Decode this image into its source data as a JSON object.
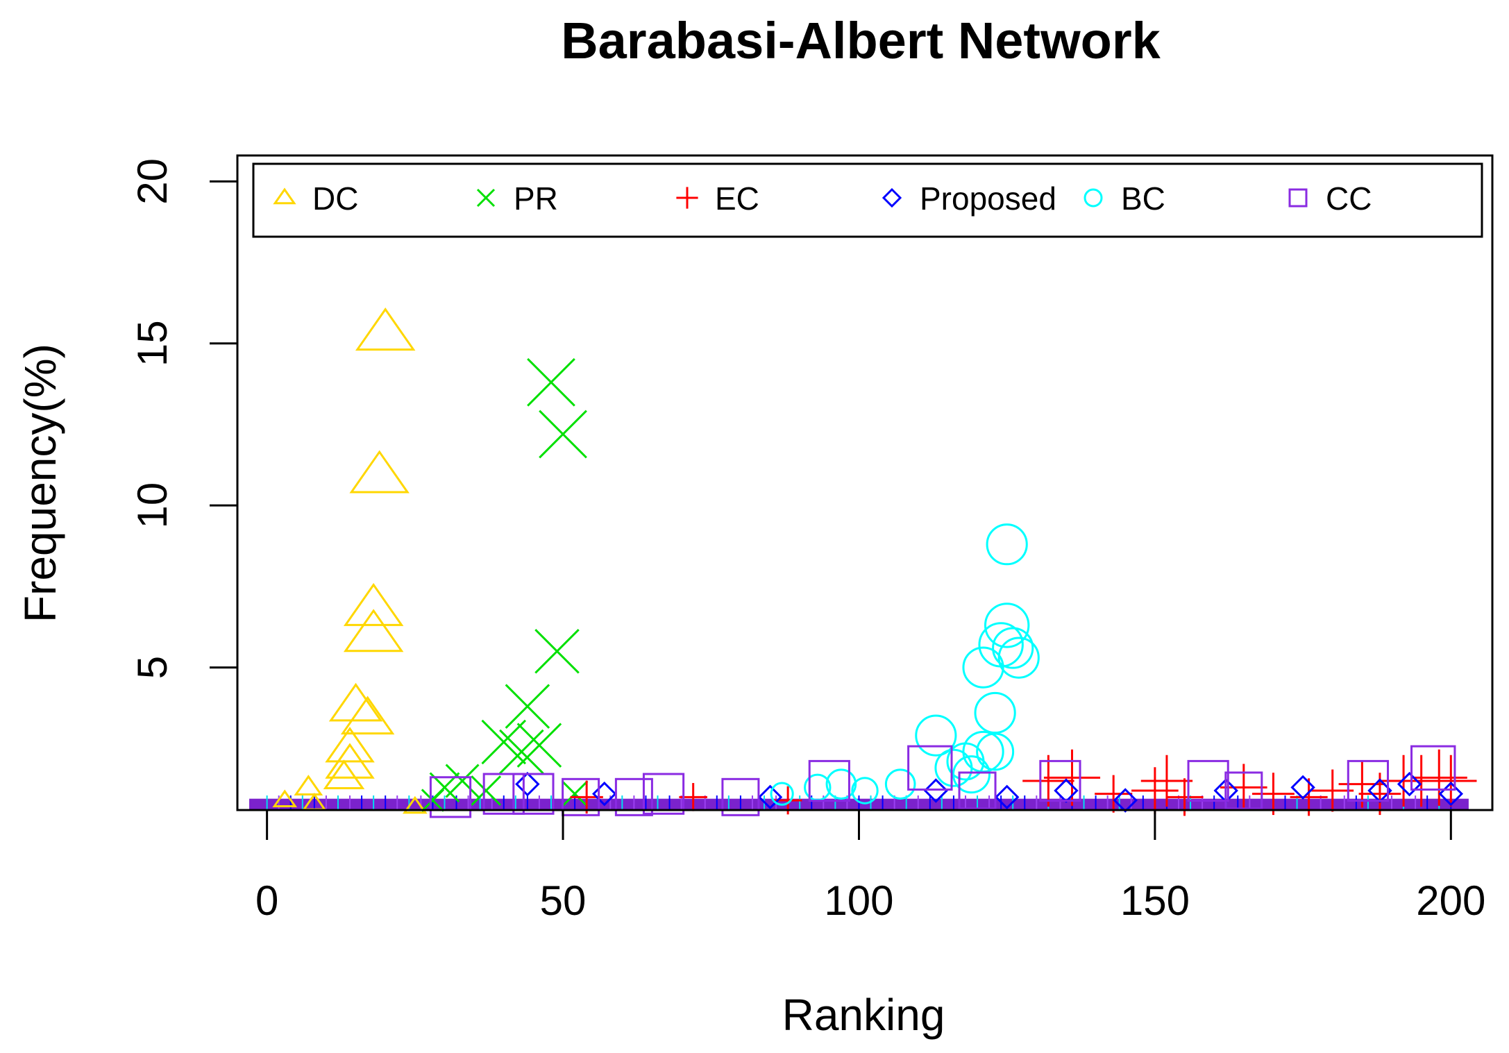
{
  "chart_data": {
    "type": "scatter",
    "title": "Barabasi-Albert Network",
    "xlabel": "Ranking",
    "ylabel": "Frequency(%)",
    "xlim": [
      -5,
      207
    ],
    "ylim": [
      0.6,
      20.8
    ],
    "xticks": [
      0,
      50,
      100,
      150,
      200
    ],
    "yticks": [
      5,
      10,
      15,
      20
    ],
    "legend_position": "top",
    "series": [
      {
        "name": "DC",
        "marker": "triangle",
        "color": "#FFD700",
        "points": [
          [
            20,
            15.3
          ],
          [
            19,
            10.9
          ],
          [
            18,
            6.8
          ],
          [
            18,
            6.0
          ],
          [
            15,
            3.8
          ],
          [
            17,
            3.4
          ],
          [
            14,
            2.5
          ],
          [
            14,
            2.0
          ],
          [
            13,
            1.6
          ],
          [
            7,
            1.3
          ],
          [
            3,
            0.9
          ],
          [
            8,
            0.8
          ],
          [
            25,
            0.7
          ]
        ],
        "sizes": [
          2.7,
          2.7,
          2.7,
          2.7,
          2.4,
          2.4,
          2.2,
          2.2,
          1.8,
          1.2,
          1.0,
          1.0,
          1.0
        ]
      },
      {
        "name": "PR",
        "marker": "x",
        "color": "#00E000",
        "points": [
          [
            48,
            13.8
          ],
          [
            50,
            12.2
          ],
          [
            49,
            5.5
          ],
          [
            44,
            3.8
          ],
          [
            40,
            2.7
          ],
          [
            43,
            2.4
          ],
          [
            46,
            2.6
          ],
          [
            33,
            1.5
          ],
          [
            30,
            1.3
          ],
          [
            37,
            1.2
          ],
          [
            52,
            1.1
          ],
          [
            28,
            0.9
          ]
        ],
        "sizes": [
          2.6,
          2.6,
          2.4,
          2.4,
          2.4,
          2.4,
          2.4,
          1.8,
          1.6,
          1.6,
          1.4,
          1.2
        ]
      },
      {
        "name": "EC",
        "marker": "plus",
        "color": "#FF0000",
        "points": [
          [
            132,
            1.5
          ],
          [
            136,
            1.6
          ],
          [
            152,
            1.5
          ],
          [
            150,
            1.2
          ],
          [
            165,
            1.3
          ],
          [
            170,
            1.1
          ],
          [
            180,
            1.2
          ],
          [
            185,
            1.4
          ],
          [
            192,
            1.5
          ],
          [
            195,
            1.5
          ],
          [
            198,
            1.6
          ],
          [
            200,
            1.5
          ],
          [
            143,
            1.1
          ],
          [
            155,
            1.0
          ],
          [
            176,
            1.0
          ],
          [
            188,
            1.1
          ],
          [
            54,
            1.0
          ],
          [
            72,
            1.0
          ],
          [
            88,
            0.9
          ]
        ],
        "sizes": [
          2.2,
          2.4,
          2.2,
          2.0,
          2.0,
          1.8,
          1.8,
          2.0,
          2.2,
          2.2,
          2.4,
          2.2,
          1.6,
          1.6,
          1.6,
          1.8,
          1.4,
          1.2,
          1.2
        ]
      },
      {
        "name": "Proposed",
        "marker": "diamond",
        "color": "#0000FF",
        "points": [
          [
            44,
            1.4
          ],
          [
            57,
            1.1
          ],
          [
            113,
            1.2
          ],
          [
            125,
            1.0
          ],
          [
            135,
            1.2
          ],
          [
            162,
            1.2
          ],
          [
            175,
            1.3
          ],
          [
            188,
            1.2
          ],
          [
            193,
            1.4
          ],
          [
            200,
            1.1
          ],
          [
            85,
            1.0
          ],
          [
            145,
            0.9
          ]
        ],
        "sizes": [
          1.2,
          1.2,
          1.2,
          1.2,
          1.2,
          1.2,
          1.2,
          1.2,
          1.2,
          1.2,
          1.2,
          1.2
        ]
      },
      {
        "name": "BC",
        "marker": "circle",
        "color": "#00FFFF",
        "points": [
          [
            125,
            8.8
          ],
          [
            125,
            6.3
          ],
          [
            124,
            5.7
          ],
          [
            126,
            5.6
          ],
          [
            127,
            5.3
          ],
          [
            121,
            5.0
          ],
          [
            123,
            3.6
          ],
          [
            113,
            2.9
          ],
          [
            121,
            2.4
          ],
          [
            123,
            2.4
          ],
          [
            118,
            2.1
          ],
          [
            116,
            1.9
          ],
          [
            119,
            1.7
          ],
          [
            107,
            1.4
          ],
          [
            97,
            1.4
          ],
          [
            93,
            1.3
          ],
          [
            101,
            1.2
          ],
          [
            87,
            1.1
          ]
        ],
        "sizes": [
          2.2,
          2.4,
          2.4,
          2.2,
          2.2,
          2.2,
          2.2,
          2.2,
          2.2,
          2.0,
          2.0,
          2.0,
          2.0,
          1.6,
          1.6,
          1.4,
          1.4,
          1.2
        ]
      },
      {
        "name": "CC",
        "marker": "square",
        "color": "#8A2BE2",
        "points": [
          [
            95,
            1.5
          ],
          [
            112,
            1.9
          ],
          [
            134,
            1.5
          ],
          [
            159,
            1.5
          ],
          [
            186,
            1.5
          ],
          [
            197,
            1.9
          ],
          [
            31,
            1.0
          ],
          [
            40,
            1.1
          ],
          [
            45,
            1.1
          ],
          [
            53,
            1.0
          ],
          [
            62,
            1.0
          ],
          [
            67,
            1.1
          ],
          [
            80,
            1.0
          ],
          [
            120,
            1.2
          ],
          [
            165,
            1.2
          ]
        ],
        "sizes": [
          2.2,
          2.4,
          2.2,
          2.2,
          2.2,
          2.4,
          2.2,
          2.2,
          2.2,
          2.0,
          2.0,
          2.2,
          2.0,
          2.0,
          2.0
        ]
      }
    ]
  }
}
